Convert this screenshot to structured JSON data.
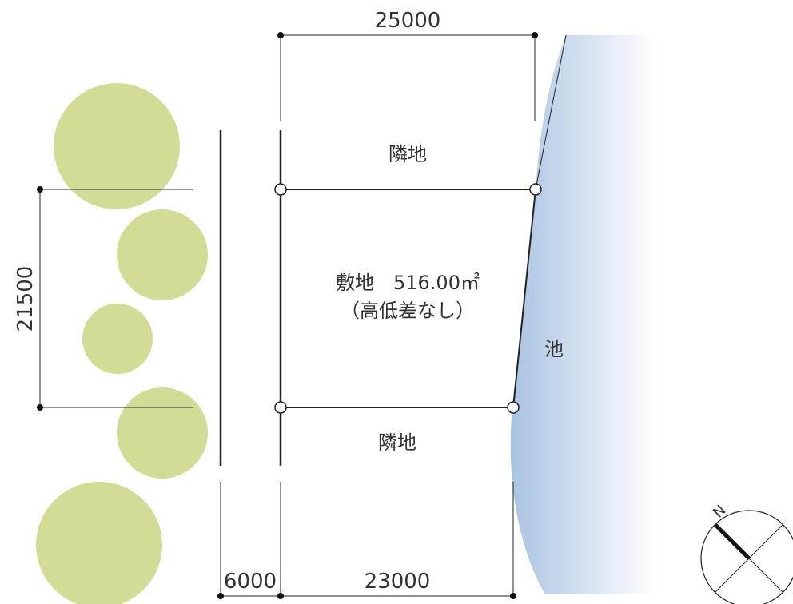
{
  "dimensions": {
    "top_width": "25000",
    "bottom_width": "23000",
    "road_width": "6000",
    "site_depth": "21500"
  },
  "labels": {
    "neighbor_top": "隣地",
    "neighbor_bottom": "隣地",
    "site_line1": "敷地　516.00㎡",
    "site_line2": "（高低差なし）",
    "pond": "池"
  },
  "compass": {
    "north_label": "N"
  },
  "colors": {
    "tree": "#d2dc96",
    "pond_edge": "#a9c3e1",
    "pond_fade": "#ffffff",
    "line": "#222222"
  }
}
